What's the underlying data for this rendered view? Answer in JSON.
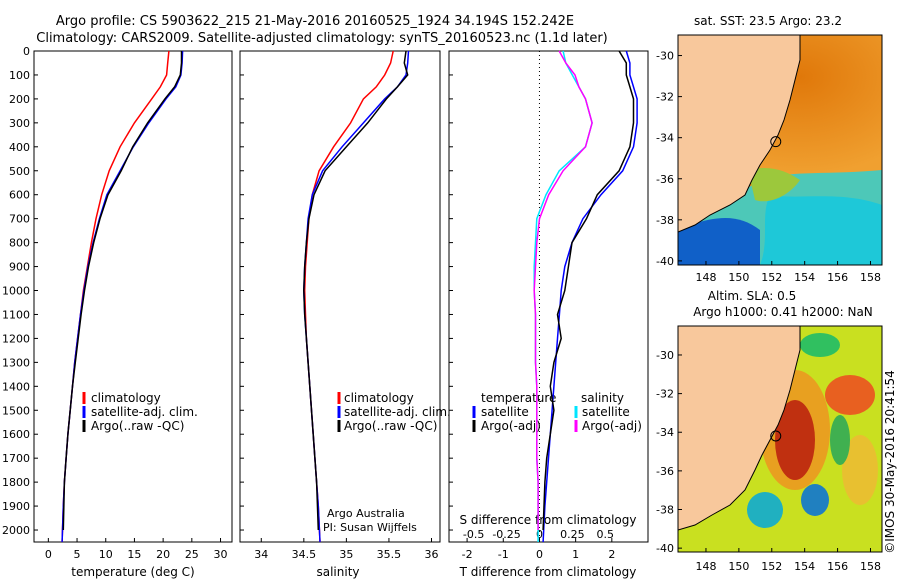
{
  "header": {
    "line1": "Argo profile: CS 5903622_215 21-May-2016 20160525_1924 34.194S 152.242E",
    "line2": "Climatology: CARS2009. Satellite-adjusted climatology: synTS_20160523.nc (1.1d later)"
  },
  "side_stamp": "©IMOS 30-May-2016 20:41:54",
  "colors": {
    "climatology": "#ff0000",
    "satellite": "#0000ff",
    "argo": "#000000",
    "salinity_satellite": "#00e5ff",
    "salinity_argo": "#ff00ff",
    "land": "#f8c89c"
  },
  "panels": {
    "temperature": {
      "xlabel": "temperature (deg C)",
      "legend": [
        "climatology",
        "satellite-adj. clim.",
        "Argo(..raw -QC)"
      ]
    },
    "salinity": {
      "xlabel": "salinity",
      "legend": [
        "climatology",
        "satellite-adj. clim.",
        "Argo(..raw -QC)"
      ],
      "credit1": "Argo Australia",
      "credit2": "PI: Susan Wijffels"
    },
    "difference": {
      "xlabel_top": "S difference from climatology",
      "xlabel_bottom": "T difference from climatology",
      "legend_head_t": "temperature",
      "legend_head_s": "salinity",
      "legend_t": [
        "satellite",
        "Argo(-adj)"
      ],
      "legend_s": [
        "satellite",
        "Argo(-adj)"
      ]
    }
  },
  "maps": {
    "sst": {
      "title": "sat. SST: 23.5  Argo: 23.2"
    },
    "sla": {
      "title1": "Altim. SLA: 0.5",
      "title2": "Argo h1000: 0.41  h2000: NaN"
    },
    "xticks": [
      148,
      150,
      152,
      154,
      156,
      158
    ],
    "yticks": [
      -30,
      -32,
      -34,
      -36,
      -38,
      -40
    ],
    "float_location": {
      "lon": 152.242,
      "lat": -34.194
    }
  },
  "chart_data": [
    {
      "type": "line",
      "name": "temperature",
      "xlabel": "temperature (deg C)",
      "ylabel": "",
      "xlim": [
        -2.5,
        32
      ],
      "ylim": [
        2050,
        0
      ],
      "xticks": [
        0,
        5,
        10,
        15,
        20,
        25,
        30
      ],
      "yticks": [
        0,
        100,
        200,
        300,
        400,
        500,
        600,
        700,
        800,
        900,
        1000,
        1100,
        1200,
        1300,
        1400,
        1500,
        1600,
        1700,
        1800,
        1900,
        2000
      ],
      "series": [
        {
          "name": "climatology",
          "color": "#ff0000",
          "x": [
            21.0,
            20.8,
            20.6,
            19.5,
            18.0,
            15.0,
            12.5,
            10.6,
            9.3,
            8.3,
            7.5,
            6.8,
            6.1,
            5.6,
            5.1,
            4.6,
            4.2,
            3.8,
            3.4,
            3.1,
            2.8,
            2.6,
            2.4
          ],
          "y": [
            0,
            50,
            100,
            150,
            200,
            300,
            400,
            500,
            600,
            700,
            800,
            900,
            1000,
            1100,
            1200,
            1300,
            1400,
            1500,
            1600,
            1700,
            1800,
            1900,
            2050
          ]
        },
        {
          "name": "satellite-adj. clim.",
          "color": "#0000ff",
          "x": [
            23.4,
            23.3,
            23.1,
            22.2,
            20.5,
            17.5,
            14.8,
            12.5,
            10.2,
            8.9,
            7.8,
            6.9,
            6.2,
            5.6,
            5.1,
            4.6,
            4.2,
            3.8,
            3.4,
            3.1,
            2.8,
            2.6,
            2.4
          ],
          "y": [
            0,
            50,
            100,
            150,
            200,
            300,
            400,
            500,
            600,
            700,
            800,
            900,
            1000,
            1100,
            1200,
            1300,
            1400,
            1500,
            1600,
            1700,
            1800,
            1900,
            2050
          ]
        },
        {
          "name": "Argo(..raw -QC)",
          "color": "#000000",
          "x": [
            23.2,
            23.2,
            23.0,
            22.0,
            20.3,
            17.3,
            14.7,
            12.7,
            10.4,
            9.0,
            7.9,
            7.0,
            6.3,
            5.7,
            5.2,
            4.7,
            4.2,
            3.8,
            3.4,
            3.1,
            2.8,
            2.6
          ],
          "y": [
            0,
            50,
            100,
            150,
            200,
            300,
            400,
            500,
            600,
            700,
            800,
            900,
            1000,
            1100,
            1200,
            1300,
            1400,
            1500,
            1600,
            1700,
            1800,
            2000
          ]
        }
      ]
    },
    {
      "type": "line",
      "name": "salinity",
      "xlabel": "salinity",
      "ylabel": "",
      "xlim": [
        33.75,
        36.1
      ],
      "ylim": [
        2050,
        0
      ],
      "xticks": [
        34,
        34.5,
        35,
        35.5,
        36
      ],
      "series": [
        {
          "name": "climatology",
          "color": "#ff0000",
          "x": [
            35.55,
            35.52,
            35.45,
            35.35,
            35.2,
            35.05,
            34.85,
            34.68,
            34.6,
            34.56,
            34.54,
            34.52,
            34.51,
            34.52,
            34.53,
            34.55,
            34.57,
            34.59,
            34.61,
            34.63,
            34.65,
            34.67,
            34.69
          ],
          "y": [
            0,
            50,
            100,
            150,
            200,
            300,
            400,
            500,
            600,
            700,
            800,
            900,
            1000,
            1100,
            1200,
            1300,
            1400,
            1500,
            1600,
            1700,
            1800,
            1900,
            2050
          ]
        },
        {
          "name": "satellite-adj. clim.",
          "color": "#0000ff",
          "x": [
            35.73,
            35.72,
            35.7,
            35.6,
            35.45,
            35.2,
            34.95,
            34.72,
            34.6,
            34.55,
            34.53,
            34.51,
            34.5,
            34.51,
            34.53,
            34.55,
            34.57,
            34.59,
            34.61,
            34.63,
            34.65,
            34.67,
            34.69
          ],
          "y": [
            0,
            50,
            100,
            150,
            200,
            300,
            400,
            500,
            600,
            700,
            800,
            900,
            1000,
            1100,
            1200,
            1300,
            1400,
            1500,
            1600,
            1700,
            1800,
            1900,
            2050
          ]
        },
        {
          "name": "Argo(..raw -QC)",
          "color": "#000000",
          "x": [
            35.7,
            35.68,
            35.72,
            35.6,
            35.47,
            35.25,
            35.0,
            34.75,
            34.62,
            34.56,
            34.53,
            34.51,
            34.5,
            34.51,
            34.53,
            34.55,
            34.57,
            34.59,
            34.61,
            34.63,
            34.65,
            34.67
          ],
          "y": [
            0,
            50,
            100,
            150,
            200,
            300,
            400,
            500,
            600,
            700,
            800,
            900,
            1000,
            1100,
            1200,
            1300,
            1400,
            1500,
            1600,
            1700,
            1800,
            2000
          ]
        }
      ]
    },
    {
      "type": "line",
      "name": "difference",
      "xlabel_top": "S difference from climatology",
      "xlabel_bottom": "T difference from climatology",
      "xlim_T": [
        -2.5,
        3
      ],
      "xticks_T": [
        -2,
        -1,
        0,
        1,
        2
      ],
      "xlim_S": [
        -0.6875,
        0.825
      ],
      "xticks_S": [
        -0.5,
        -0.25,
        0,
        0.25,
        0.5
      ],
      "ylim": [
        2050,
        0
      ],
      "series": [
        {
          "name": "temperature satellite",
          "color": "#0000ff",
          "axis": "T",
          "x": [
            2.4,
            2.5,
            2.5,
            2.6,
            2.7,
            2.7,
            2.6,
            2.3,
            1.7,
            1.2,
            0.9,
            0.7,
            0.6,
            0.55,
            0.5,
            0.45,
            0.4,
            0.35,
            0.3,
            0.25,
            0.2,
            0.15,
            0.1
          ],
          "y": [
            0,
            50,
            100,
            150,
            200,
            300,
            400,
            500,
            600,
            700,
            800,
            900,
            1000,
            1100,
            1200,
            1300,
            1400,
            1500,
            1600,
            1700,
            1800,
            1900,
            2050
          ]
        },
        {
          "name": "temperature Argo(-adj)",
          "color": "#000000",
          "axis": "T",
          "x": [
            2.2,
            2.4,
            2.4,
            2.5,
            2.6,
            2.6,
            2.5,
            2.2,
            1.6,
            1.3,
            0.9,
            0.8,
            0.7,
            0.5,
            0.6,
            0.4,
            0.3,
            0.4,
            0.3,
            0.2,
            0.15,
            0.1
          ],
          "y": [
            0,
            50,
            100,
            150,
            200,
            300,
            400,
            500,
            600,
            700,
            800,
            900,
            1000,
            1100,
            1200,
            1300,
            1400,
            1500,
            1600,
            1700,
            1800,
            2000
          ]
        },
        {
          "name": "salinity satellite",
          "color": "#00e5ff",
          "axis": "S",
          "x": [
            0.18,
            0.2,
            0.25,
            0.3,
            0.35,
            0.4,
            0.35,
            0.15,
            0.05,
            -0.02,
            -0.03,
            -0.04,
            -0.04,
            -0.03,
            -0.03,
            -0.03,
            -0.02,
            -0.02,
            -0.02,
            -0.02,
            -0.01,
            -0.01,
            -0.01
          ],
          "y": [
            0,
            50,
            100,
            150,
            200,
            300,
            400,
            500,
            600,
            700,
            800,
            900,
            1000,
            1100,
            1200,
            1300,
            1400,
            1500,
            1600,
            1700,
            1800,
            1900,
            2050
          ]
        },
        {
          "name": "salinity Argo(-adj)",
          "color": "#ff00ff",
          "axis": "S",
          "x": [
            0.15,
            0.2,
            0.27,
            0.3,
            0.35,
            0.4,
            0.35,
            0.18,
            0.07,
            0.0,
            -0.02,
            -0.03,
            -0.04,
            -0.03,
            -0.03,
            -0.03,
            -0.02,
            -0.02,
            -0.02,
            -0.02,
            -0.01,
            -0.01
          ],
          "y": [
            0,
            50,
            100,
            150,
            200,
            300,
            400,
            500,
            600,
            700,
            800,
            900,
            1000,
            1100,
            1200,
            1300,
            1400,
            1500,
            1600,
            1700,
            1800,
            2000
          ]
        }
      ]
    }
  ]
}
